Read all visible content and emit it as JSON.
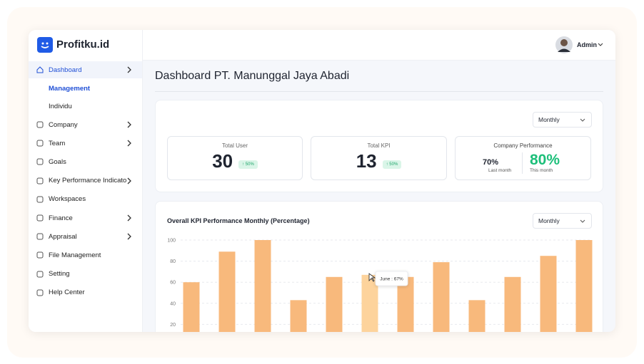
{
  "sidebar": {
    "logo": "Profitku.id",
    "menu": [
      {
        "label": "Dashboard",
        "submenu": [
          "Management",
          "Individu"
        ]
      },
      {
        "label": "Company"
      },
      {
        "label": "Team"
      },
      {
        "label": "Goals"
      },
      {
        "label": "Key Performance Indicato"
      },
      {
        "label": "Workspaces"
      },
      {
        "label": "Finance"
      },
      {
        "label": "Appraisal"
      },
      {
        "label": "File Management"
      },
      {
        "label": "Setting"
      },
      {
        "label": "Help Center"
      }
    ]
  },
  "header": {
    "user": "Admin"
  },
  "page_title": "Dashboard PT. Manunggal Jaya Abadi",
  "summary": {
    "period": "Monthly",
    "stats": [
      {
        "label": "Total User",
        "value": 30,
        "change": "50%"
      },
      {
        "label": "Total KPI",
        "value": 13,
        "change": "50%"
      }
    ],
    "performance": {
      "label": "Company Performance",
      "last_value": "70%",
      "last_label": "Last month",
      "this_value": "80%",
      "this_label": "This month"
    }
  },
  "chart_period": "Monthly",
  "chart_data": {
    "type": "bar",
    "title": "Overall KPI Performance Monthly (Percentage)",
    "values": [
      60,
      89,
      100,
      43,
      65,
      67,
      65,
      79,
      43,
      65,
      85,
      100
    ],
    "colors": [
      "#f8b97c",
      "#f8b97c",
      "#f8b97c",
      "#f8b97c",
      "#f8b97c",
      "#fdd39c",
      "#f8b97c",
      "#f8b97c",
      "#f8b97c",
      "#f8b97c",
      "#f8b97c",
      "#f8b97c"
    ],
    "ylim": [
      0,
      100
    ],
    "yticks": [
      20,
      40,
      60,
      80,
      100
    ],
    "grid": true,
    "annotations": [
      "June : 67%"
    ]
  }
}
